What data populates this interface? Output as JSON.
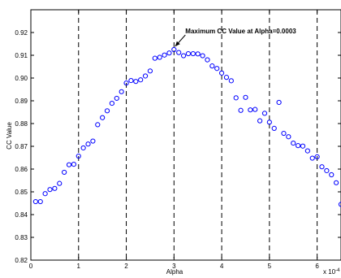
{
  "chart_data": {
    "type": "scatter",
    "xlabel": "Alpha",
    "ylabel": "CC Value",
    "x_exponent_label": "x 10",
    "x_exponent_power": "-4",
    "xlim": [
      0,
      6.5
    ],
    "ylim": [
      0.82,
      0.93
    ],
    "x_ticks": [
      0,
      1,
      2,
      3,
      4,
      5,
      6
    ],
    "y_ticks": [
      0.82,
      0.83,
      0.84,
      0.85,
      0.86,
      0.87,
      0.88,
      0.89,
      0.9,
      0.91,
      0.92
    ],
    "vertical_dashed_lines": [
      1,
      2,
      3,
      4,
      5,
      6
    ],
    "marker_color": "#0000ff",
    "annotation": {
      "text": "Maximum CC Value at Alpha=0.0003",
      "x": 3.0,
      "y": 0.9125
    },
    "points": [
      [
        0.1,
        0.8457
      ],
      [
        0.2,
        0.8457
      ],
      [
        0.3,
        0.8492
      ],
      [
        0.4,
        0.851
      ],
      [
        0.5,
        0.8515
      ],
      [
        0.6,
        0.8537
      ],
      [
        0.7,
        0.8586
      ],
      [
        0.8,
        0.8619
      ],
      [
        0.9,
        0.8621
      ],
      [
        1.0,
        0.8657
      ],
      [
        1.1,
        0.8693
      ],
      [
        1.2,
        0.871
      ],
      [
        1.3,
        0.8723
      ],
      [
        1.4,
        0.8795
      ],
      [
        1.5,
        0.8826
      ],
      [
        1.6,
        0.8856
      ],
      [
        1.7,
        0.8889
      ],
      [
        1.8,
        0.8911
      ],
      [
        1.9,
        0.894
      ],
      [
        2.0,
        0.8978
      ],
      [
        2.1,
        0.8989
      ],
      [
        2.2,
        0.8985
      ],
      [
        2.3,
        0.8992
      ],
      [
        2.4,
        0.9009
      ],
      [
        2.5,
        0.9031
      ],
      [
        2.6,
        0.9087
      ],
      [
        2.7,
        0.9091
      ],
      [
        2.8,
        0.9101
      ],
      [
        2.9,
        0.911
      ],
      [
        3.0,
        0.9125
      ],
      [
        3.1,
        0.9112
      ],
      [
        3.2,
        0.9098
      ],
      [
        3.3,
        0.9107
      ],
      [
        3.4,
        0.9107
      ],
      [
        3.5,
        0.9106
      ],
      [
        3.6,
        0.9098
      ],
      [
        3.7,
        0.908
      ],
      [
        3.8,
        0.9053
      ],
      [
        3.9,
        0.9042
      ],
      [
        4.0,
        0.9022
      ],
      [
        4.1,
        0.9003
      ],
      [
        4.2,
        0.8988
      ],
      [
        4.3,
        0.8913
      ],
      [
        4.4,
        0.8858
      ],
      [
        4.5,
        0.8915
      ],
      [
        4.6,
        0.886
      ],
      [
        4.7,
        0.8862
      ],
      [
        4.8,
        0.8812
      ],
      [
        4.9,
        0.8845
      ],
      [
        5.0,
        0.8806
      ],
      [
        5.1,
        0.8779
      ],
      [
        5.2,
        0.8893
      ],
      [
        5.3,
        0.8757
      ],
      [
        5.4,
        0.8742
      ],
      [
        5.5,
        0.8714
      ],
      [
        5.6,
        0.8703
      ],
      [
        5.7,
        0.8701
      ],
      [
        5.8,
        0.868
      ],
      [
        5.9,
        0.8648
      ],
      [
        6.0,
        0.8654
      ],
      [
        6.1,
        0.861
      ],
      [
        6.2,
        0.8593
      ],
      [
        6.3,
        0.8575
      ],
      [
        6.4,
        0.854
      ],
      [
        6.5,
        0.8445
      ]
    ]
  }
}
